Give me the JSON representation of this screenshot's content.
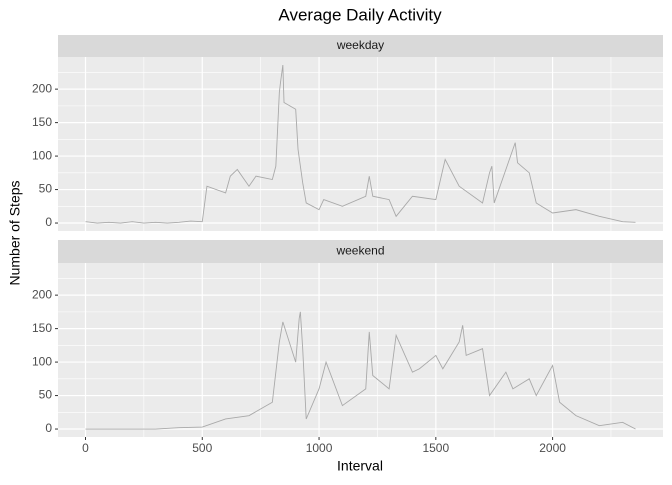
{
  "chart_data": {
    "type": "line",
    "title": "Average Daily Activity",
    "x_label": "Interval",
    "y_label": "Number of Steps",
    "color": "#a9a9a9",
    "xlim": [
      -117.75,
      2472.75
    ],
    "xticks": [
      0,
      500,
      1000,
      1500,
      2000
    ],
    "x_minor_grid": [
      250,
      750,
      1250,
      1750,
      2250
    ],
    "ylim": [
      -11.9,
      248
    ],
    "yticks": [
      0,
      50,
      100,
      150,
      200
    ],
    "y_minor_grid": [
      25,
      75,
      125,
      175,
      225
    ],
    "grid": true,
    "panels": [
      {
        "label": "weekday",
        "x": [
          0,
          50,
          100,
          150,
          200,
          250,
          300,
          350,
          400,
          450,
          500,
          520,
          600,
          620,
          650,
          700,
          730,
          800,
          815,
          830,
          835,
          845,
          850,
          900,
          910,
          930,
          945,
          1000,
          1020,
          1100,
          1200,
          1215,
          1230,
          1300,
          1330,
          1400,
          1500,
          1540,
          1600,
          1700,
          1730,
          1740,
          1750,
          1800,
          1830,
          1840,
          1850,
          1900,
          1930,
          2000,
          2100,
          2200,
          2300,
          2355
        ],
        "values": [
          2,
          0,
          1,
          0,
          2,
          0,
          1,
          0,
          1,
          3,
          2,
          55,
          45,
          70,
          80,
          55,
          70,
          65,
          85,
          195,
          210,
          236,
          180,
          170,
          110,
          60,
          30,
          20,
          35,
          25,
          40,
          70,
          40,
          35,
          10,
          40,
          35,
          95,
          55,
          30,
          75,
          85,
          30,
          80,
          110,
          120,
          90,
          75,
          30,
          15,
          20,
          10,
          2,
          1
        ]
      },
      {
        "label": "weekend",
        "x": [
          0,
          100,
          200,
          300,
          400,
          500,
          600,
          700,
          800,
          830,
          845,
          900,
          915,
          920,
          930,
          945,
          1000,
          1030,
          1100,
          1200,
          1215,
          1230,
          1300,
          1315,
          1330,
          1400,
          1430,
          1500,
          1530,
          1600,
          1615,
          1630,
          1700,
          1730,
          1800,
          1830,
          1900,
          1930,
          2000,
          2030,
          2100,
          2200,
          2300,
          2355
        ],
        "values": [
          0,
          0,
          0,
          0,
          2,
          3,
          15,
          20,
          40,
          130,
          160,
          100,
          165,
          175,
          120,
          15,
          60,
          100,
          35,
          60,
          145,
          80,
          60,
          100,
          140,
          85,
          90,
          110,
          90,
          130,
          155,
          110,
          120,
          50,
          85,
          60,
          75,
          50,
          95,
          40,
          20,
          5,
          10,
          0
        ]
      }
    ]
  }
}
